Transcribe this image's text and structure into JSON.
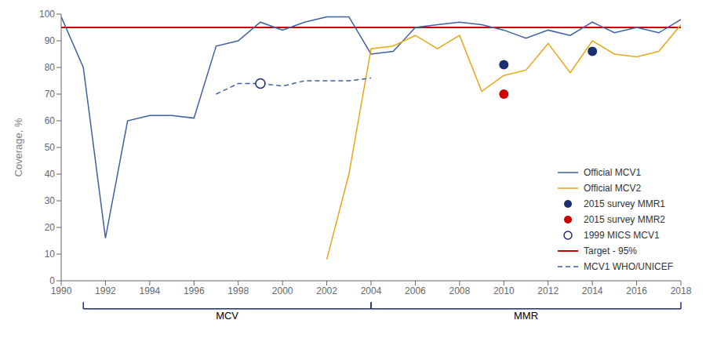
{
  "chart_data": {
    "type": "line",
    "y_label": "Coverage, %",
    "xlim": [
      1990,
      2018
    ],
    "xticks": [
      1990,
      1992,
      1994,
      1996,
      1998,
      2000,
      2002,
      2004,
      2006,
      2008,
      2010,
      2012,
      2014,
      2016,
      2018
    ],
    "ylim": [
      0,
      100
    ],
    "yticks": [
      0,
      10,
      20,
      30,
      40,
      50,
      60,
      70,
      80,
      90,
      100
    ],
    "grid": false,
    "legend": "lower right",
    "series": [
      {
        "name": "Official MCV1",
        "type": "line",
        "color": "#3f5fa0",
        "x": [
          1990,
          1991,
          1992,
          1993,
          1994,
          1995,
          1996,
          1997,
          1998,
          1999,
          2000,
          2001,
          2002,
          2003,
          2004,
          2005,
          2006,
          2007,
          2008,
          2009,
          2010,
          2011,
          2012,
          2013,
          2014,
          2015,
          2016,
          2017,
          2018
        ],
        "values": [
          99,
          80,
          16,
          60,
          62,
          62,
          61,
          88,
          90,
          97,
          94,
          97,
          99,
          99,
          85,
          86,
          95,
          96,
          97,
          96,
          94,
          91,
          94,
          92,
          97,
          93,
          95,
          93,
          98
        ]
      },
      {
        "name": "Official MCV2",
        "type": "line",
        "color": "#e6a817",
        "x": [
          2002,
          2003,
          2004,
          2005,
          2006,
          2007,
          2008,
          2009,
          2010,
          2011,
          2012,
          2013,
          2014,
          2015,
          2016,
          2017,
          2018
        ],
        "values": [
          8,
          40,
          87,
          88,
          92,
          87,
          92,
          71,
          77,
          79,
          89,
          78,
          90,
          85,
          84,
          86,
          96
        ]
      },
      {
        "name": "2015 survey MMR1",
        "type": "scatter",
        "marker": "circle",
        "color": "#1a2f6e",
        "x": [
          2010,
          2014
        ],
        "values": [
          81,
          86
        ]
      },
      {
        "name": "2015 survey MMR2",
        "type": "scatter",
        "marker": "circle",
        "color": "#cc0000",
        "x": [
          2010
        ],
        "values": [
          70
        ]
      },
      {
        "name": "1999 MICS MCV1",
        "type": "scatter",
        "marker": "open_circle",
        "color": "#1a2f6e",
        "x": [
          1999
        ],
        "values": [
          74
        ]
      },
      {
        "name": "Target - 95%",
        "type": "hline",
        "color": "#cc0000",
        "values": [
          95
        ]
      },
      {
        "name": "MCV1 WHO/UNICEF",
        "type": "line",
        "line_style": "dashed",
        "color": "#3f5fa0",
        "x": [
          1997,
          1998,
          1999,
          2000,
          2001,
          2002,
          2003,
          2004
        ],
        "values": [
          70,
          74,
          74,
          73,
          75,
          75,
          75,
          76
        ]
      }
    ],
    "annotations": [
      {
        "text": "MCV",
        "x": [
          1991,
          2004
        ],
        "color": "#1a2f6e"
      },
      {
        "text": "MMR",
        "x": [
          2004,
          2018
        ],
        "color": "#1a2f6e"
      }
    ]
  }
}
